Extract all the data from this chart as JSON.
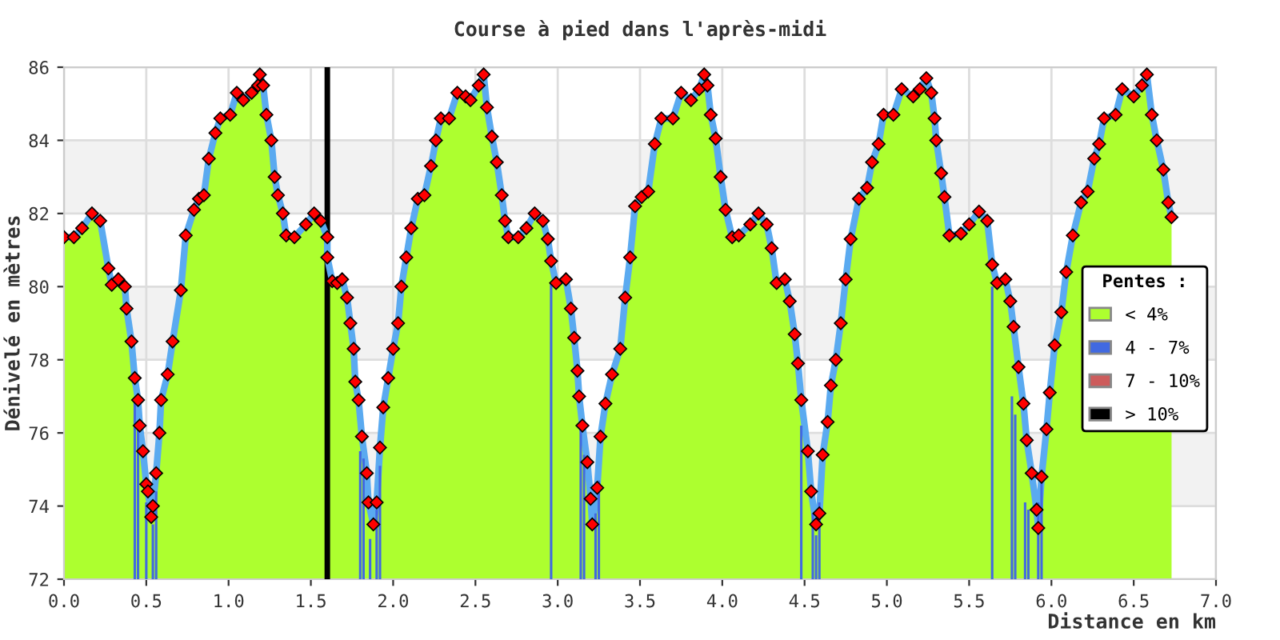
{
  "chart_data": {
    "type": "area",
    "title": "Course à pied dans l'après-midi",
    "xlabel": "Distance en km",
    "ylabel": "Dénivelé en mètres",
    "legend_title": "Pentes :",
    "legend": "right",
    "grid": true,
    "xlim": [
      0,
      7
    ],
    "xticks": [
      {
        "value": 0,
        "label": "0.0"
      },
      {
        "value": 0.5,
        "label": "0.5"
      },
      {
        "value": 1,
        "label": "1.0"
      },
      {
        "value": 1.5,
        "label": "1.5"
      },
      {
        "value": 2,
        "label": "2.0"
      },
      {
        "value": 2.5,
        "label": "2.5"
      },
      {
        "value": 3,
        "label": "3.0"
      },
      {
        "value": 3.5,
        "label": "3.5"
      },
      {
        "value": 4,
        "label": "4.0"
      },
      {
        "value": 4.5,
        "label": "4.5"
      },
      {
        "value": 5,
        "label": "5.0"
      },
      {
        "value": 5.5,
        "label": "5.5"
      },
      {
        "value": 6,
        "label": "6.0"
      },
      {
        "value": 6.5,
        "label": "6.5"
      },
      {
        "value": 7,
        "label": "7.0"
      }
    ],
    "ylim": [
      72,
      86
    ],
    "yticks": [
      72,
      74,
      76,
      78,
      80,
      82,
      84,
      86
    ],
    "bands": [
      {
        "axis": "y",
        "from": 82,
        "to": 84,
        "color": "#f2f2f2"
      },
      {
        "axis": "y",
        "from": 78,
        "to": 80,
        "color": "#f2f2f2"
      },
      {
        "axis": "y",
        "from": 74,
        "to": 76,
        "color": "#f2f2f2"
      }
    ],
    "ref_lines": [
      {
        "axis": "x",
        "value": 1.6,
        "color": "#000000"
      }
    ],
    "series": [
      {
        "name": "< 4%",
        "marker": "diamond",
        "color": "#adff2f",
        "x": [
          0,
          0.06,
          0.11,
          0.17,
          0.22,
          0.27,
          0.29,
          0.33,
          0.37,
          0.38,
          0.41,
          0.43,
          0.45,
          0.46,
          0.48,
          0.5,
          0.51,
          0.53,
          0.54,
          0.56,
          0.58,
          0.59,
          0.63,
          0.66,
          0.71,
          0.74,
          0.79,
          0.82,
          0.85,
          0.88,
          0.92,
          0.95,
          1.01,
          1.05,
          1.09,
          1.14,
          1.18,
          1.19,
          1.21,
          1.23,
          1.26,
          1.28,
          1.3,
          1.33,
          1.35,
          1.4,
          1.47,
          1.52,
          1.56,
          1.6,
          1.6,
          1.63,
          1.66,
          1.69,
          1.72,
          1.74,
          1.76,
          1.77,
          1.79,
          1.81,
          1.84,
          1.85,
          1.88,
          1.9,
          1.92,
          1.94,
          1.97,
          2.0,
          2.03,
          2.05,
          2.08,
          2.11,
          2.15,
          2.19,
          2.23,
          2.26,
          2.29,
          2.34,
          2.39,
          2.44,
          2.47,
          2.52,
          2.55,
          2.57,
          2.6,
          2.63,
          2.66,
          2.68,
          2.7,
          2.76,
          2.81,
          2.86,
          2.91,
          2.94,
          2.96,
          2.99,
          3.05,
          3.08,
          3.1,
          3.12,
          3.13,
          3.15,
          3.18,
          3.2,
          3.21,
          3.24,
          3.26,
          3.29,
          3.33,
          3.38,
          3.41,
          3.44,
          3.47,
          3.51,
          3.55,
          3.59,
          3.63,
          3.7,
          3.75,
          3.81,
          3.86,
          3.89,
          3.91,
          3.93,
          3.96,
          3.99,
          4.02,
          4.06,
          4.1,
          4.17,
          4.22,
          4.27,
          4.3,
          4.33,
          4.38,
          4.41,
          4.44,
          4.46,
          4.48,
          4.52,
          4.54,
          4.57,
          4.59,
          4.61,
          4.64,
          4.66,
          4.69,
          4.72,
          4.75,
          4.78,
          4.83,
          4.88,
          4.91,
          4.95,
          4.98,
          5.04,
          5.09,
          5.16,
          5.2,
          5.24,
          5.27,
          5.29,
          5.3,
          5.33,
          5.35,
          5.38,
          5.45,
          5.5,
          5.56,
          5.61,
          5.64,
          5.67,
          5.72,
          5.75,
          5.77,
          5.8,
          5.83,
          5.85,
          5.88,
          5.91,
          5.92,
          5.94,
          5.97,
          5.99,
          6.02,
          6.06,
          6.09,
          6.13,
          6.18,
          6.22,
          6.26,
          6.29,
          6.32,
          6.39,
          6.43,
          6.5,
          6.55,
          6.58,
          6.61,
          6.64,
          6.68,
          6.71,
          6.73
        ],
        "values": [
          81.35,
          81.35,
          81.6,
          82.0,
          81.8,
          80.5,
          80.05,
          80.2,
          80.0,
          79.4,
          78.5,
          77.5,
          76.9,
          76.2,
          75.5,
          74.6,
          74.4,
          73.7,
          74.0,
          74.9,
          76.0,
          76.9,
          77.6,
          78.5,
          79.9,
          81.4,
          82.1,
          82.4,
          82.5,
          83.5,
          84.2,
          84.6,
          84.7,
          85.3,
          85.1,
          85.3,
          85.5,
          85.8,
          85.5,
          84.7,
          84.0,
          83.0,
          82.5,
          82.0,
          81.4,
          81.35,
          81.7,
          82.0,
          81.8,
          81.35,
          80.8,
          80.15,
          80.1,
          80.2,
          79.7,
          79.0,
          78.3,
          77.4,
          76.9,
          75.9,
          74.9,
          74.1,
          73.5,
          74.1,
          75.6,
          76.7,
          77.5,
          78.3,
          79.0,
          80.0,
          80.8,
          81.6,
          82.4,
          82.5,
          83.3,
          84.0,
          84.6,
          84.6,
          85.3,
          85.2,
          85.1,
          85.5,
          85.8,
          84.9,
          84.1,
          83.4,
          82.5,
          81.8,
          81.35,
          81.35,
          81.6,
          82.0,
          81.8,
          81.3,
          80.7,
          80.1,
          80.2,
          79.4,
          78.6,
          77.7,
          77.0,
          76.2,
          75.2,
          74.2,
          73.5,
          74.5,
          75.9,
          76.8,
          77.6,
          78.3,
          79.7,
          80.8,
          82.2,
          82.45,
          82.6,
          83.9,
          84.6,
          84.6,
          85.3,
          85.1,
          85.4,
          85.8,
          85.5,
          84.7,
          84.05,
          83.0,
          82.1,
          81.35,
          81.4,
          81.7,
          82.0,
          81.7,
          81.05,
          80.1,
          80.2,
          79.6,
          78.7,
          77.9,
          76.9,
          75.5,
          74.4,
          73.5,
          73.8,
          75.4,
          76.3,
          77.3,
          78.0,
          79.0,
          80.2,
          81.3,
          82.4,
          82.7,
          83.4,
          83.9,
          84.7,
          84.7,
          85.4,
          85.2,
          85.4,
          85.7,
          85.3,
          84.6,
          84.0,
          83.1,
          82.45,
          81.4,
          81.45,
          81.7,
          82.05,
          81.8,
          80.6,
          80.1,
          80.2,
          79.6,
          78.9,
          77.8,
          76.8,
          75.8,
          74.9,
          73.9,
          73.4,
          74.8,
          76.1,
          77.1,
          78.4,
          79.3,
          80.4,
          81.4,
          82.3,
          82.6,
          83.5,
          83.9,
          84.6,
          84.7,
          85.4,
          85.2,
          85.5,
          85.8,
          84.7,
          84.0,
          83.2,
          82.3,
          81.9
        ]
      },
      {
        "type": "line",
        "color": "#5aaaf0",
        "x": [
          0,
          0.06,
          0.11,
          0.17,
          0.22,
          0.27,
          0.29,
          0.33,
          0.37,
          0.38,
          0.41,
          0.43,
          0.45,
          0.46,
          0.48,
          0.5,
          0.51,
          0.53,
          0.54,
          0.56,
          0.58,
          0.59,
          0.63,
          0.66,
          0.71,
          0.74,
          0.79,
          0.82,
          0.85,
          0.88,
          0.92,
          0.95,
          1.01,
          1.05,
          1.09,
          1.14,
          1.18,
          1.19,
          1.21,
          1.23,
          1.26,
          1.28,
          1.3,
          1.33,
          1.35,
          1.4,
          1.47,
          1.52,
          1.56,
          1.6,
          1.6,
          1.63,
          1.66,
          1.69,
          1.72,
          1.74,
          1.76,
          1.77,
          1.79,
          1.81,
          1.84,
          1.85,
          1.88,
          1.9,
          1.92,
          1.94,
          1.97,
          2.0,
          2.03,
          2.05,
          2.08,
          2.11,
          2.15,
          2.19,
          2.23,
          2.26,
          2.29,
          2.34,
          2.39,
          2.44,
          2.47,
          2.52,
          2.55,
          2.57,
          2.6,
          2.63,
          2.66,
          2.68,
          2.7,
          2.76,
          2.81,
          2.86,
          2.91,
          2.94,
          2.96,
          2.99,
          3.05,
          3.08,
          3.1,
          3.12,
          3.13,
          3.15,
          3.18,
          3.2,
          3.21,
          3.24,
          3.26,
          3.29,
          3.33,
          3.38,
          3.41,
          3.44,
          3.47,
          3.51,
          3.55,
          3.59,
          3.63,
          3.7,
          3.75,
          3.81,
          3.86,
          3.89,
          3.91,
          3.93,
          3.96,
          3.99,
          4.02,
          4.06,
          4.1,
          4.17,
          4.22,
          4.27,
          4.3,
          4.33,
          4.38,
          4.41,
          4.44,
          4.46,
          4.48,
          4.52,
          4.54,
          4.57,
          4.59,
          4.61,
          4.64,
          4.66,
          4.69,
          4.72,
          4.75,
          4.78,
          4.83,
          4.88,
          4.91,
          4.95,
          4.98,
          5.04,
          5.09,
          5.16,
          5.2,
          5.24,
          5.27,
          5.29,
          5.3,
          5.33,
          5.35,
          5.38,
          5.45,
          5.5,
          5.56,
          5.61,
          5.64,
          5.67,
          5.72,
          5.75,
          5.77,
          5.8,
          5.83,
          5.85,
          5.88,
          5.91,
          5.92,
          5.94,
          5.97,
          5.99,
          6.02,
          6.06,
          6.09,
          6.13,
          6.18,
          6.22,
          6.26,
          6.29,
          6.32,
          6.39,
          6.43,
          6.5,
          6.55,
          6.58,
          6.61,
          6.64,
          6.68,
          6.71,
          6.73
        ],
        "values": [
          81.35,
          81.35,
          81.6,
          82.0,
          81.8,
          80.5,
          80.05,
          80.2,
          80.0,
          79.4,
          78.5,
          77.5,
          76.9,
          76.2,
          75.5,
          74.6,
          74.4,
          73.7,
          74.0,
          74.9,
          76.0,
          76.9,
          77.6,
          78.5,
          79.9,
          81.4,
          82.1,
          82.4,
          82.5,
          83.5,
          84.2,
          84.6,
          84.7,
          85.3,
          85.1,
          85.3,
          85.5,
          85.8,
          85.5,
          84.7,
          84.0,
          83.0,
          82.5,
          82.0,
          81.4,
          81.35,
          81.7,
          82.0,
          81.8,
          81.35,
          80.8,
          80.15,
          80.1,
          80.2,
          79.7,
          79.0,
          78.3,
          77.4,
          76.9,
          75.9,
          74.9,
          74.1,
          73.5,
          74.1,
          75.6,
          76.7,
          77.5,
          78.3,
          79.0,
          80.0,
          80.8,
          81.6,
          82.4,
          82.5,
          83.3,
          84.0,
          84.6,
          84.6,
          85.3,
          85.2,
          85.1,
          85.5,
          85.8,
          84.9,
          84.1,
          83.4,
          82.5,
          81.8,
          81.35,
          81.35,
          81.6,
          82.0,
          81.8,
          81.3,
          80.7,
          80.1,
          80.2,
          79.4,
          78.6,
          77.7,
          77.0,
          76.2,
          75.2,
          74.2,
          73.5,
          74.5,
          75.9,
          76.8,
          77.6,
          78.3,
          79.7,
          80.8,
          82.2,
          82.45,
          82.6,
          83.9,
          84.6,
          84.6,
          85.3,
          85.1,
          85.4,
          85.8,
          85.5,
          84.7,
          84.05,
          83.0,
          82.1,
          81.35,
          81.4,
          81.7,
          82.0,
          81.7,
          81.05,
          80.1,
          80.2,
          79.6,
          78.7,
          77.9,
          76.9,
          75.5,
          74.4,
          73.5,
          73.8,
          75.4,
          76.3,
          77.3,
          78.0,
          79.0,
          80.2,
          81.3,
          82.4,
          82.7,
          83.4,
          83.9,
          84.7,
          84.7,
          85.4,
          85.2,
          85.4,
          85.7,
          85.3,
          84.6,
          84.0,
          83.1,
          82.45,
          81.4,
          81.45,
          81.7,
          82.05,
          81.8,
          80.6,
          80.1,
          80.2,
          79.6,
          78.9,
          77.8,
          76.8,
          75.8,
          74.9,
          73.9,
          73.4,
          74.8,
          76.1,
          77.1,
          78.4,
          79.3,
          80.4,
          81.4,
          82.3,
          82.6,
          83.5,
          83.9,
          84.6,
          84.7,
          85.4,
          85.2,
          85.5,
          85.8,
          84.7,
          84.0,
          83.2,
          82.3,
          81.9
        ]
      },
      {
        "type": "bar",
        "name": "4 - 7%",
        "color": "#4169e1",
        "x": [
          0.43,
          0.45,
          0.5,
          0.54,
          0.56,
          1.8,
          1.82,
          1.86,
          1.9,
          1.92,
          2.96,
          3.14,
          3.16,
          3.23,
          3.25,
          4.48,
          4.55,
          4.57,
          4.59,
          5.64,
          5.76,
          5.78,
          5.84,
          5.86,
          5.92,
          5.94
        ],
        "values": [
          76.9,
          76.1,
          74.1,
          73.5,
          74.4,
          75.5,
          75.3,
          73.1,
          73.9,
          75.1,
          80.1,
          76.1,
          75.4,
          73.8,
          74.7,
          76.2,
          73.8,
          73.2,
          74.1,
          80.0,
          77.0,
          76.5,
          74.1,
          73.9,
          74.1,
          75.0
        ]
      },
      {
        "type": "bar",
        "name": "7 - 10%",
        "color": "#cd5c5c"
      },
      {
        "type": "bar",
        "name": "> 10%",
        "color": "#000000"
      }
    ]
  }
}
